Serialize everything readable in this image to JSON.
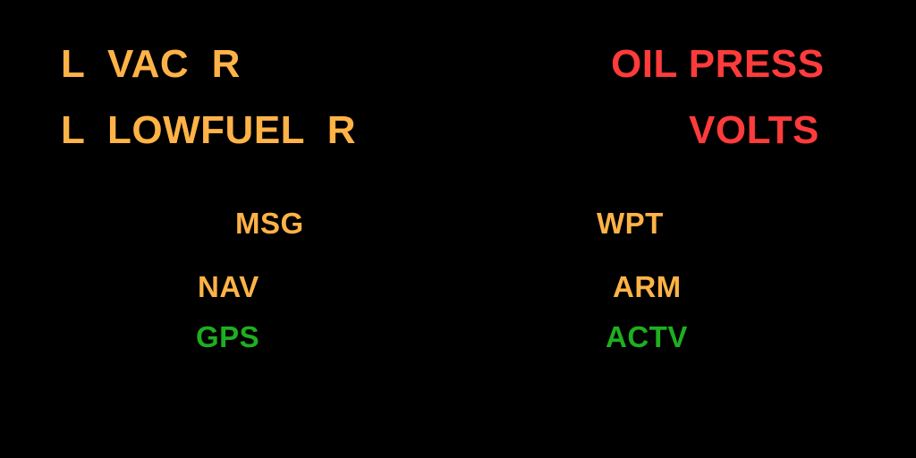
{
  "colors": {
    "caution": "#ffb347",
    "warning": "#ff3b3b",
    "active": "#1fae1f",
    "background": "#000000"
  },
  "caution": {
    "vac": "L  VAC  R",
    "lowfuel": "L  LOWFUEL  R"
  },
  "warning": {
    "oil_press": "OIL PRESS",
    "volts": "VOLTS"
  },
  "status": {
    "msg": "MSG",
    "wpt": "WPT",
    "nav": "NAV",
    "arm": "ARM",
    "gps": "GPS",
    "actv": "ACTV"
  }
}
